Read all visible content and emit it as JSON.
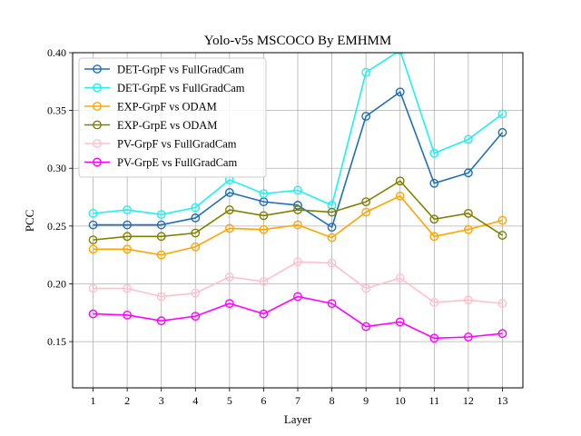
{
  "chart_data": {
    "type": "line",
    "title": "Yolo-v5s MSCOCO By EMHMM",
    "xlabel": "Layer",
    "ylabel": "PCC",
    "x": [
      1,
      2,
      3,
      4,
      5,
      6,
      7,
      8,
      9,
      10,
      11,
      12,
      13
    ],
    "xlim": [
      0.4,
      13.6
    ],
    "ylim": [
      0.11,
      0.4
    ],
    "yticks": [
      0.15,
      0.2,
      0.25,
      0.3,
      0.35,
      0.4
    ],
    "ytick_labels": [
      "0.15",
      "0.20",
      "0.25",
      "0.30",
      "0.35",
      "0.40"
    ],
    "grid": true,
    "legend_position": "top-left",
    "series": [
      {
        "name": "DET-GrpF vs FullGradCam",
        "color": "#1f6fb4",
        "values": [
          0.251,
          0.251,
          0.251,
          0.257,
          0.279,
          0.271,
          0.268,
          0.249,
          0.345,
          0.366,
          0.287,
          0.296,
          0.331
        ]
      },
      {
        "name": "DET-GrpE vs FullGradCam",
        "color": "#1ff0f0",
        "values": [
          0.261,
          0.264,
          0.26,
          0.266,
          0.29,
          0.278,
          0.281,
          0.268,
          0.383,
          0.402,
          0.313,
          0.325,
          0.347
        ]
      },
      {
        "name": "EXP-GrpF vs ODAM",
        "color": "#ffa500",
        "values": [
          0.23,
          0.23,
          0.225,
          0.232,
          0.248,
          0.247,
          0.251,
          0.24,
          0.262,
          0.276,
          0.241,
          0.247,
          0.255
        ]
      },
      {
        "name": "EXP-GrpE vs ODAM",
        "color": "#808000",
        "values": [
          0.238,
          0.241,
          0.241,
          0.244,
          0.264,
          0.259,
          0.264,
          0.262,
          0.271,
          0.289,
          0.256,
          0.261,
          0.242
        ]
      },
      {
        "name": "PV-GrpF vs FullGradCam",
        "color": "#ffc0cb",
        "values": [
          0.196,
          0.196,
          0.189,
          0.192,
          0.206,
          0.202,
          0.219,
          0.218,
          0.196,
          0.205,
          0.184,
          0.186,
          0.183
        ]
      },
      {
        "name": "PV-GrpE vs FullGradCam",
        "color": "#ff00ff",
        "values": [
          0.174,
          0.173,
          0.168,
          0.172,
          0.183,
          0.174,
          0.189,
          0.183,
          0.163,
          0.167,
          0.153,
          0.154,
          0.157
        ]
      }
    ]
  }
}
